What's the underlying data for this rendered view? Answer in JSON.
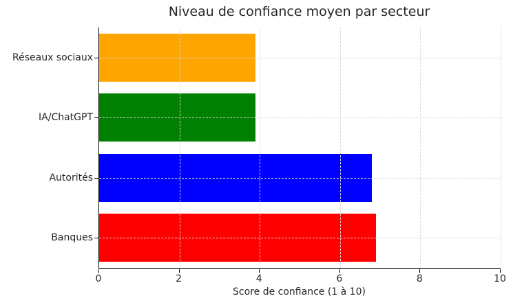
{
  "chart_data": {
    "type": "bar",
    "orientation": "horizontal",
    "title": "Niveau de confiance moyen par secteur",
    "xlabel": "Score de confiance (1 à 10)",
    "ylabel": "",
    "categories": [
      "Réseaux sociaux",
      "IA/ChatGPT",
      "Autorités",
      "Banques"
    ],
    "values": [
      3.9,
      3.9,
      6.8,
      6.9
    ],
    "bar_colors": [
      "#FFA500",
      "#008000",
      "#0000FF",
      "#FF0000"
    ],
    "xlim": [
      0,
      10
    ],
    "xticks": [
      0,
      2,
      4,
      6,
      8,
      10
    ],
    "xtick_labels": [
      "0",
      "2",
      "4",
      "6",
      "8",
      "10"
    ],
    "grid": "dashed",
    "grid_color": "#d9d9d9",
    "axis_color": "#000000",
    "text_color": "#262626",
    "legend": "none"
  }
}
